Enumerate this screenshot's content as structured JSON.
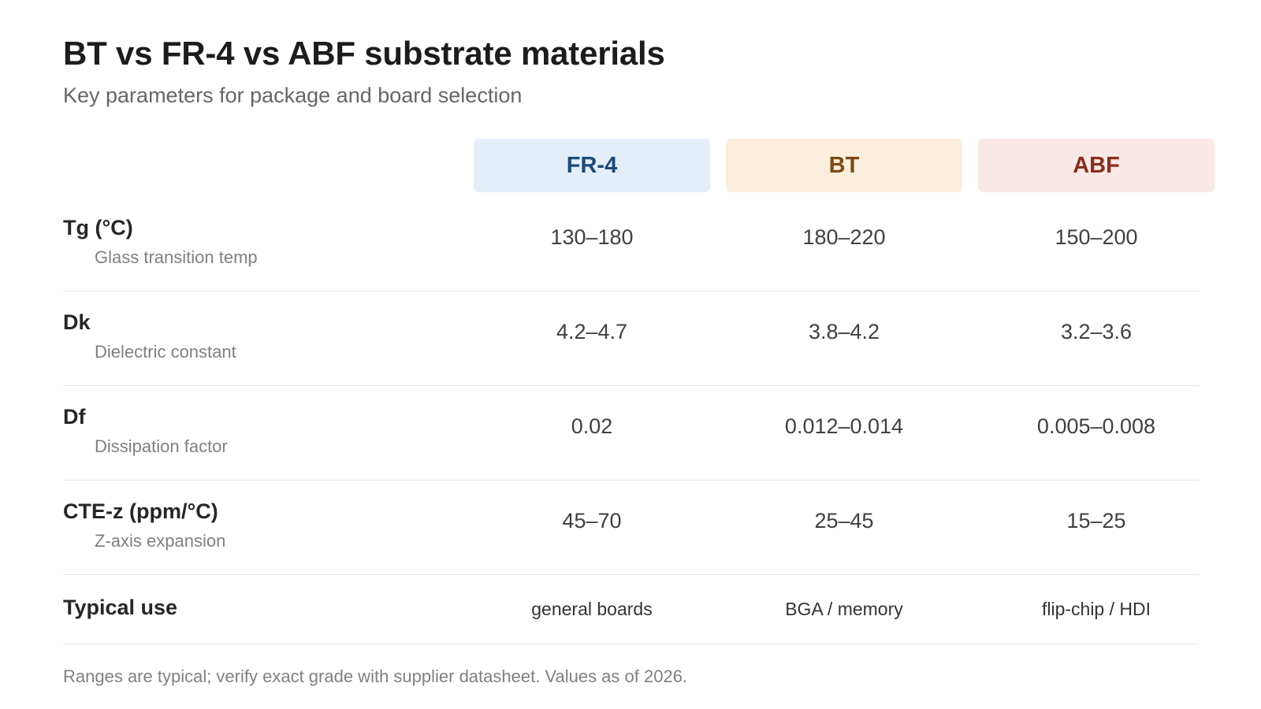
{
  "title": "BT vs FR-4 vs ABF substrate materials",
  "subtitle": "Key parameters for package and board selection",
  "columns": [
    "FR-4",
    "BT",
    "ABF"
  ],
  "colors": {
    "fr4_bg": "#e3eef9",
    "fr4_text": "#1a4a7a",
    "bt_bg": "#fbeedd",
    "bt_text": "#7a4a12",
    "abf_bg": "#fae8e6",
    "abf_text": "#8a2e1c"
  },
  "rows": [
    {
      "label": "Tg (°C)",
      "sublabel": "Glass transition temp",
      "values": [
        "130–180",
        "180–220",
        "150–200"
      ]
    },
    {
      "label": "Dk",
      "sublabel": "Dielectric constant",
      "values": [
        "4.2–4.7",
        "3.8–4.2",
        "3.2–3.6"
      ]
    },
    {
      "label": "Df",
      "sublabel": "Dissipation factor",
      "values": [
        "0.02",
        "0.012–0.014",
        "0.005–0.008"
      ]
    },
    {
      "label": "CTE-z (ppm/°C)",
      "sublabel": "Z-axis expansion",
      "values": [
        "45–70",
        "25–45",
        "15–25"
      ]
    },
    {
      "label": "Typical use",
      "values": [
        "general boards",
        "BGA / memory",
        "flip-chip / HDI"
      ]
    }
  ],
  "footnote": "Ranges are typical; verify exact grade with supplier datasheet. Values as of 2026."
}
